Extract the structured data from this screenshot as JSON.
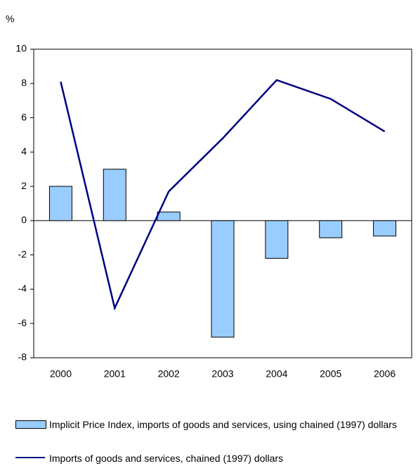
{
  "chart_data": {
    "type": "bar",
    "y_unit": "%",
    "categories": [
      "2000",
      "2001",
      "2002",
      "2003",
      "2004",
      "2005",
      "2006"
    ],
    "series": [
      {
        "name": "Implicit Price Index, imports of goods and services, using chained (1997) dollars",
        "type": "bar",
        "color": "#99ccff",
        "values": [
          2.0,
          3.0,
          0.5,
          -6.8,
          -2.2,
          -1.0,
          -0.9
        ]
      },
      {
        "name": "Imports of goods and services, chained (1997) dollars",
        "type": "line",
        "color": "#000080",
        "values": [
          8.1,
          -5.1,
          1.7,
          4.8,
          8.2,
          7.1,
          5.2
        ]
      }
    ],
    "ylim": [
      -8,
      10
    ],
    "yticks": [
      -8,
      -6,
      -4,
      -2,
      0,
      2,
      4,
      6,
      8,
      10
    ],
    "grid": false,
    "legend": "bottom"
  }
}
